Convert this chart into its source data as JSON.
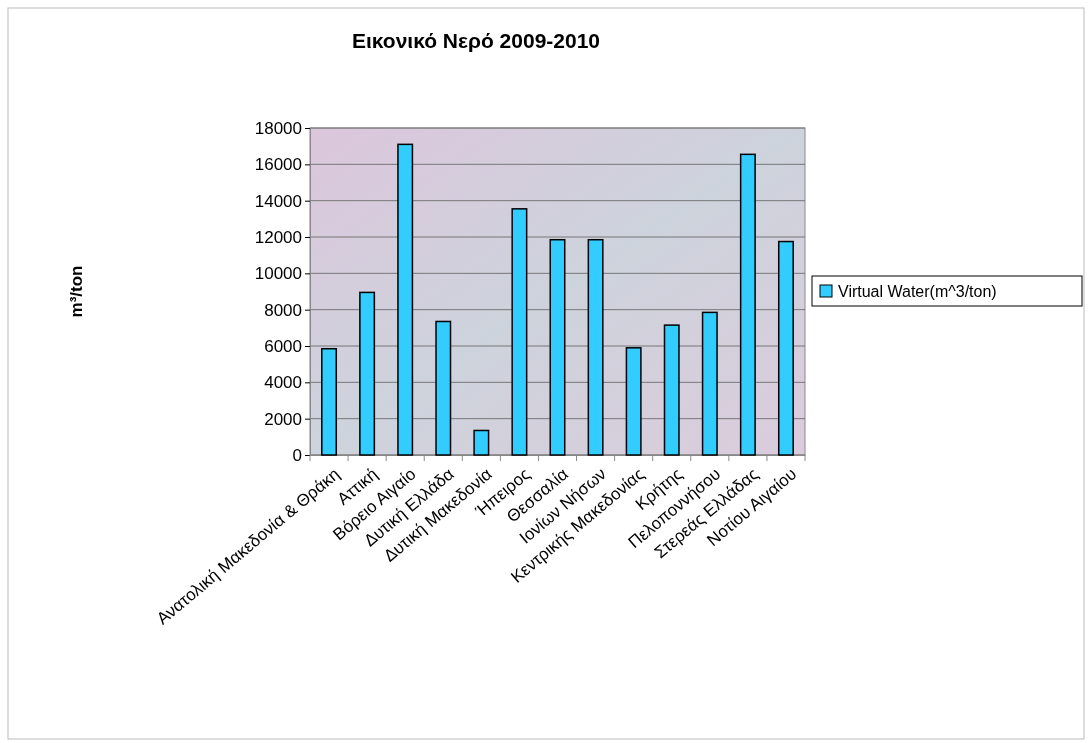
{
  "chart_data": {
    "type": "bar",
    "title": "Εικονικό Νερό 2009-2010",
    "ylabel": "m³/ton",
    "categories": [
      "Ανατολική Μακεδονία & Θράκη",
      "Αττική",
      "Βόρειο Αιγαίο",
      "Δυτική Ελλάδα",
      "Δυτική Μακεδονία",
      "Ήπειρος",
      "Θεσσαλία",
      "Ιονίων Νήσων",
      "Κεντρικής Μακεδονίας",
      "Κρήτης",
      "Πελοποννήσου",
      "Στερεάς Ελλάδας",
      "Νοτίου Αιγαίου"
    ],
    "series": [
      {
        "name": "Virtual Water(m^3/ton)",
        "color": "#33ccff",
        "values": [
          5850,
          8950,
          17100,
          7350,
          1350,
          13550,
          11850,
          11850,
          5900,
          7150,
          7850,
          16550,
          11750
        ]
      }
    ],
    "ylim": [
      0,
      18000
    ],
    "yticks": [
      0,
      2000,
      4000,
      6000,
      8000,
      10000,
      12000,
      14000,
      16000,
      18000
    ],
    "grid": "y",
    "legend": "right"
  }
}
